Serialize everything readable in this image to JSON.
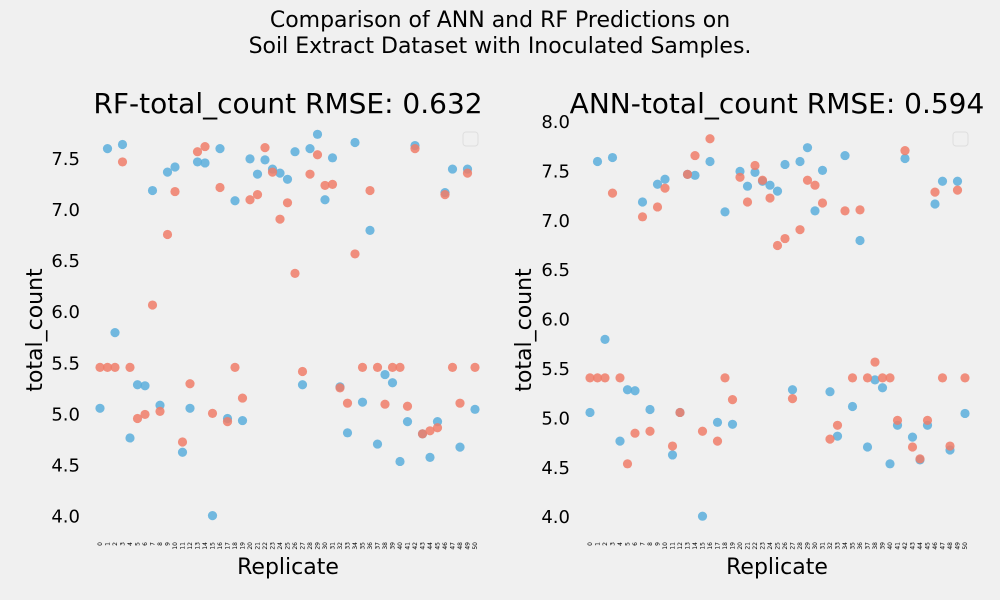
{
  "figure": {
    "suptitle_line1": "Comparison of ANN and RF Predictions on",
    "suptitle_line2": "Soil Extract Dataset with Inoculated Samples.",
    "background": "#f0f0f0"
  },
  "chart_data": [
    {
      "type": "scatter",
      "title": "RF-total_count RMSE: 0.632",
      "xlabel": "Replicate",
      "ylabel": "total_count",
      "ylim": [
        3.85,
        7.88
      ],
      "y_ticks": [
        "4.0",
        "4.5",
        "5.0",
        "5.5",
        "6.0",
        "6.5",
        "7.0",
        "7.5"
      ],
      "x_ticks": [
        "0",
        "1",
        "2",
        "3",
        "4",
        "5",
        "6",
        "7",
        "8",
        "9",
        "10",
        "11",
        "12",
        "13",
        "14",
        "15",
        "16",
        "17",
        "18",
        "19",
        "20",
        "21",
        "22",
        "23",
        "24",
        "25",
        "26",
        "27",
        "28",
        "29",
        "30",
        "31",
        "32",
        "33",
        "34",
        "35",
        "36",
        "37",
        "38",
        "39",
        "40",
        "41",
        "42",
        "43",
        "44",
        "45",
        "46",
        "47",
        "48",
        "49",
        "50"
      ],
      "legend": "top-right",
      "grid": false,
      "series": [
        {
          "color": "#5aaedc",
          "x": [
            0,
            1,
            2,
            3,
            4,
            5,
            6,
            7,
            8,
            9,
            10,
            11,
            12,
            13,
            14,
            15,
            16,
            17,
            18,
            19,
            20,
            21,
            22,
            23,
            24,
            25,
            26,
            27,
            28,
            29,
            30,
            31,
            32,
            33,
            34,
            35,
            36,
            37,
            38,
            39,
            40,
            41,
            42,
            43,
            44,
            45,
            46,
            47,
            48,
            49,
            50
          ],
          "y": [
            5.06,
            7.6,
            5.8,
            7.64,
            4.77,
            5.29,
            5.28,
            7.19,
            5.09,
            7.37,
            7.42,
            4.63,
            5.06,
            7.47,
            7.46,
            4.01,
            7.6,
            4.96,
            7.09,
            4.94,
            7.5,
            7.35,
            7.49,
            7.4,
            7.36,
            7.3,
            7.57,
            5.29,
            7.6,
            7.74,
            7.1,
            7.51,
            5.27,
            4.82,
            7.66,
            5.12,
            6.8,
            4.71,
            5.39,
            5.31,
            4.54,
            4.93,
            7.63,
            4.81,
            4.58,
            4.93,
            7.17,
            7.4,
            4.68,
            7.4,
            5.05
          ]
        },
        {
          "color": "#f07c68",
          "x": [
            0,
            1,
            2,
            3,
            4,
            5,
            6,
            7,
            8,
            9,
            10,
            11,
            12,
            13,
            14,
            15,
            16,
            17,
            18,
            19,
            20,
            21,
            22,
            23,
            24,
            25,
            26,
            27,
            28,
            29,
            30,
            31,
            32,
            33,
            34,
            35,
            36,
            37,
            38,
            39,
            40,
            41,
            42,
            43,
            44,
            45,
            46,
            47,
            48,
            49,
            50
          ],
          "y": [
            5.46,
            5.46,
            5.46,
            7.47,
            5.46,
            4.96,
            5.0,
            6.07,
            5.03,
            6.76,
            7.18,
            4.73,
            5.3,
            7.57,
            7.62,
            5.01,
            7.22,
            4.93,
            5.46,
            5.16,
            7.1,
            7.15,
            7.61,
            7.37,
            6.91,
            7.07,
            6.38,
            5.42,
            7.35,
            7.54,
            7.24,
            7.25,
            5.26,
            5.11,
            6.57,
            5.46,
            7.19,
            5.46,
            5.1,
            5.46,
            5.46,
            5.08,
            7.6,
            4.81,
            4.84,
            4.87,
            7.15,
            5.46,
            5.11,
            7.36,
            5.46
          ]
        }
      ]
    },
    {
      "type": "scatter",
      "title": "ANN-total_count RMSE: 0.594",
      "xlabel": "Replicate",
      "ylabel": "total_count",
      "ylim": [
        3.85,
        8.02
      ],
      "y_ticks": [
        "4.0",
        "4.5",
        "5.0",
        "5.5",
        "6.0",
        "6.5",
        "7.0",
        "7.5",
        "8.0"
      ],
      "x_ticks": [
        "0",
        "1",
        "2",
        "3",
        "4",
        "5",
        "6",
        "7",
        "8",
        "9",
        "10",
        "11",
        "12",
        "13",
        "14",
        "15",
        "16",
        "17",
        "18",
        "19",
        "20",
        "21",
        "22",
        "23",
        "24",
        "25",
        "26",
        "27",
        "28",
        "29",
        "30",
        "31",
        "32",
        "33",
        "34",
        "35",
        "36",
        "37",
        "38",
        "39",
        "40",
        "41",
        "42",
        "43",
        "44",
        "45",
        "46",
        "47",
        "48",
        "49",
        "50"
      ],
      "legend": "top-right",
      "grid": false,
      "series": [
        {
          "color": "#5aaedc",
          "x": [
            0,
            1,
            2,
            3,
            4,
            5,
            6,
            7,
            8,
            9,
            10,
            11,
            12,
            13,
            14,
            15,
            16,
            17,
            18,
            19,
            20,
            21,
            22,
            23,
            24,
            25,
            26,
            27,
            28,
            29,
            30,
            31,
            32,
            33,
            34,
            35,
            36,
            37,
            38,
            39,
            40,
            41,
            42,
            43,
            44,
            45,
            46,
            47,
            48,
            49,
            50
          ],
          "y": [
            5.06,
            7.6,
            5.8,
            7.64,
            4.77,
            5.29,
            5.28,
            7.19,
            5.09,
            7.37,
            7.42,
            4.63,
            5.06,
            7.47,
            7.46,
            4.01,
            7.6,
            4.96,
            7.09,
            4.94,
            7.5,
            7.35,
            7.49,
            7.4,
            7.36,
            7.3,
            7.57,
            5.29,
            7.6,
            7.74,
            7.1,
            7.51,
            5.27,
            4.82,
            7.66,
            5.12,
            6.8,
            4.71,
            5.39,
            5.31,
            4.54,
            4.93,
            7.63,
            4.81,
            4.58,
            4.93,
            7.17,
            7.4,
            4.68,
            7.4,
            5.05
          ]
        },
        {
          "color": "#f07c68",
          "x": [
            0,
            1,
            2,
            3,
            4,
            5,
            6,
            7,
            8,
            9,
            10,
            11,
            12,
            13,
            14,
            15,
            16,
            17,
            18,
            19,
            20,
            21,
            22,
            23,
            24,
            25,
            26,
            27,
            28,
            29,
            30,
            31,
            32,
            33,
            34,
            35,
            36,
            37,
            38,
            39,
            40,
            41,
            42,
            43,
            44,
            45,
            46,
            47,
            48,
            49,
            50
          ],
          "y": [
            5.41,
            5.41,
            5.41,
            7.28,
            5.41,
            4.54,
            4.85,
            7.04,
            4.87,
            7.14,
            7.33,
            4.72,
            5.06,
            7.47,
            7.66,
            4.87,
            7.83,
            4.77,
            5.41,
            5.19,
            7.44,
            7.19,
            7.56,
            7.41,
            7.23,
            6.75,
            6.82,
            5.2,
            6.91,
            7.41,
            7.36,
            7.18,
            4.79,
            4.93,
            7.1,
            5.41,
            7.11,
            5.41,
            5.57,
            5.41,
            5.41,
            4.98,
            7.71,
            4.71,
            4.59,
            4.98,
            7.29,
            5.41,
            4.72,
            7.31,
            5.41
          ]
        }
      ]
    }
  ]
}
